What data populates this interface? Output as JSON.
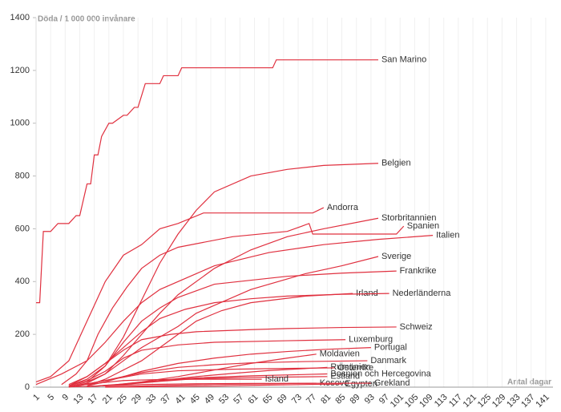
{
  "chart_data": {
    "type": "line",
    "y_label": "Döda / 1 000 000 invånare",
    "x_label": "Antal dagar",
    "xlim": [
      1,
      143
    ],
    "ylim": [
      0,
      1400
    ],
    "xticks": [
      1,
      5,
      9,
      13,
      17,
      21,
      25,
      29,
      33,
      37,
      41,
      45,
      49,
      53,
      57,
      61,
      65,
      69,
      73,
      77,
      81,
      85,
      89,
      93,
      97,
      101,
      105,
      109,
      113,
      117,
      121,
      125,
      129,
      133,
      137,
      141
    ],
    "yticks": [
      0,
      200,
      400,
      600,
      800,
      1000,
      1200,
      1400
    ],
    "grid": true,
    "color": "#e0303f",
    "series": [
      {
        "name": "San Marino",
        "x": [
          1,
          2,
          3,
          5,
          7,
          10,
          12,
          13,
          15,
          16,
          17,
          18,
          19,
          21,
          22,
          25,
          26,
          28,
          29,
          31,
          35,
          36,
          40,
          41,
          66,
          67,
          95
        ],
        "values": [
          320,
          320,
          590,
          590,
          620,
          620,
          650,
          650,
          770,
          770,
          880,
          880,
          950,
          1000,
          1000,
          1030,
          1030,
          1060,
          1060,
          1150,
          1150,
          1180,
          1180,
          1210,
          1210,
          1240,
          1240
        ]
      },
      {
        "name": "Belgien",
        "x": [
          10,
          15,
          20,
          25,
          30,
          35,
          40,
          45,
          50,
          60,
          70,
          80,
          95
        ],
        "values": [
          2,
          20,
          80,
          190,
          330,
          470,
          580,
          670,
          740,
          800,
          825,
          840,
          848
        ]
      },
      {
        "name": "Andorra",
        "x": [
          1,
          5,
          10,
          15,
          20,
          25,
          30,
          35,
          40,
          47,
          77,
          80
        ],
        "values": [
          20,
          40,
          100,
          250,
          400,
          500,
          540,
          600,
          620,
          660,
          660,
          680
        ]
      },
      {
        "name": "Storbritannien",
        "x": [
          10,
          15,
          20,
          25,
          30,
          35,
          40,
          50,
          60,
          70,
          80,
          95
        ],
        "values": [
          0,
          15,
          50,
          120,
          200,
          280,
          350,
          450,
          520,
          570,
          600,
          640
        ]
      },
      {
        "name": "Spanien",
        "x": [
          8,
          12,
          15,
          18,
          22,
          26,
          30,
          35,
          40,
          55,
          70,
          74,
          76,
          77,
          100,
          102
        ],
        "values": [
          10,
          50,
          100,
          200,
          300,
          380,
          450,
          500,
          530,
          570,
          590,
          610,
          620,
          580,
          580,
          610
        ]
      },
      {
        "name": "Italien",
        "x": [
          1,
          8,
          15,
          20,
          25,
          30,
          35,
          45,
          50,
          65,
          80,
          95,
          110
        ],
        "values": [
          10,
          50,
          100,
          170,
          250,
          320,
          370,
          430,
          460,
          510,
          540,
          560,
          575
        ]
      },
      {
        "name": "Sverige",
        "x": [
          15,
          20,
          25,
          30,
          40,
          45,
          60,
          75,
          85,
          95
        ],
        "values": [
          20,
          50,
          100,
          150,
          230,
          280,
          370,
          430,
          460,
          495
        ]
      },
      {
        "name": "Frankrike",
        "x": [
          10,
          15,
          20,
          25,
          30,
          35,
          40,
          50,
          70,
          85,
          100
        ],
        "values": [
          5,
          30,
          80,
          170,
          250,
          300,
          340,
          390,
          420,
          432,
          440
        ]
      },
      {
        "name": "Irland",
        "x": [
          15,
          20,
          30,
          38,
          45,
          52,
          60,
          75,
          88
        ],
        "values": [
          5,
          30,
          100,
          180,
          250,
          290,
          320,
          345,
          355
        ]
      },
      {
        "name": "Nederländerna",
        "x": [
          10,
          15,
          20,
          25,
          30,
          35,
          42,
          50,
          60,
          70,
          85,
          98
        ],
        "values": [
          10,
          40,
          90,
          150,
          210,
          260,
          295,
          320,
          335,
          345,
          352,
          355
        ]
      },
      {
        "name": "Schweiz",
        "x": [
          10,
          15,
          20,
          25,
          30,
          38,
          45,
          60,
          70,
          85,
          100
        ],
        "values": [
          5,
          40,
          90,
          140,
          180,
          200,
          210,
          218,
          222,
          226,
          228
        ]
      },
      {
        "name": "Luxemburg",
        "x": [
          10,
          15,
          20,
          25,
          30,
          40,
          50,
          70,
          86
        ],
        "values": [
          5,
          25,
          60,
          110,
          140,
          160,
          170,
          176,
          180
        ]
      },
      {
        "name": "Portugal",
        "x": [
          15,
          20,
          30,
          40,
          50,
          60,
          70,
          80,
          93
        ],
        "values": [
          5,
          20,
          60,
          90,
          110,
          125,
          135,
          143,
          150
        ]
      },
      {
        "name": "Moldavien",
        "x": [
          20,
          30,
          40,
          50,
          60,
          70,
          78
        ],
        "values": [
          5,
          20,
          40,
          65,
          90,
          110,
          125
        ]
      },
      {
        "name": "Danmark",
        "x": [
          12,
          20,
          30,
          40,
          50,
          60,
          75,
          92
        ],
        "values": [
          5,
          25,
          55,
          75,
          85,
          92,
          97,
          100
        ]
      },
      {
        "name": "Rumänien",
        "x": [
          15,
          25,
          35,
          45,
          55,
          65,
          81
        ],
        "values": [
          2,
          10,
          25,
          40,
          52,
          63,
          75
        ]
      },
      {
        "name": "Österrike",
        "x": [
          12,
          20,
          30,
          40,
          55,
          70,
          83
        ],
        "values": [
          3,
          25,
          50,
          62,
          68,
          71,
          73
        ]
      },
      {
        "name": "Bosnien och Hercegovina",
        "x": [
          15,
          25,
          35,
          45,
          60,
          81
        ],
        "values": [
          2,
          12,
          25,
          35,
          43,
          50
        ]
      },
      {
        "name": "Estland",
        "x": [
          15,
          25,
          35,
          45,
          60,
          81
        ],
        "values": [
          2,
          10,
          22,
          32,
          37,
          40
        ]
      },
      {
        "name": "Island",
        "x": [
          10,
          18,
          25,
          35,
          50,
          63
        ],
        "values": [
          3,
          15,
          25,
          29,
          30,
          30
        ]
      },
      {
        "name": "Kosovo",
        "x": [
          20,
          35,
          50,
          65,
          78
        ],
        "values": [
          1,
          6,
          10,
          13,
          15
        ]
      },
      {
        "name": "Egypten",
        "x": [
          20,
          35,
          50,
          65,
          85
        ],
        "values": [
          0,
          2,
          4,
          8,
          12
        ]
      },
      {
        "name": "Grekland",
        "x": [
          10,
          20,
          30,
          45,
          60,
          93
        ],
        "values": [
          1,
          5,
          10,
          13,
          14,
          15
        ]
      }
    ]
  }
}
